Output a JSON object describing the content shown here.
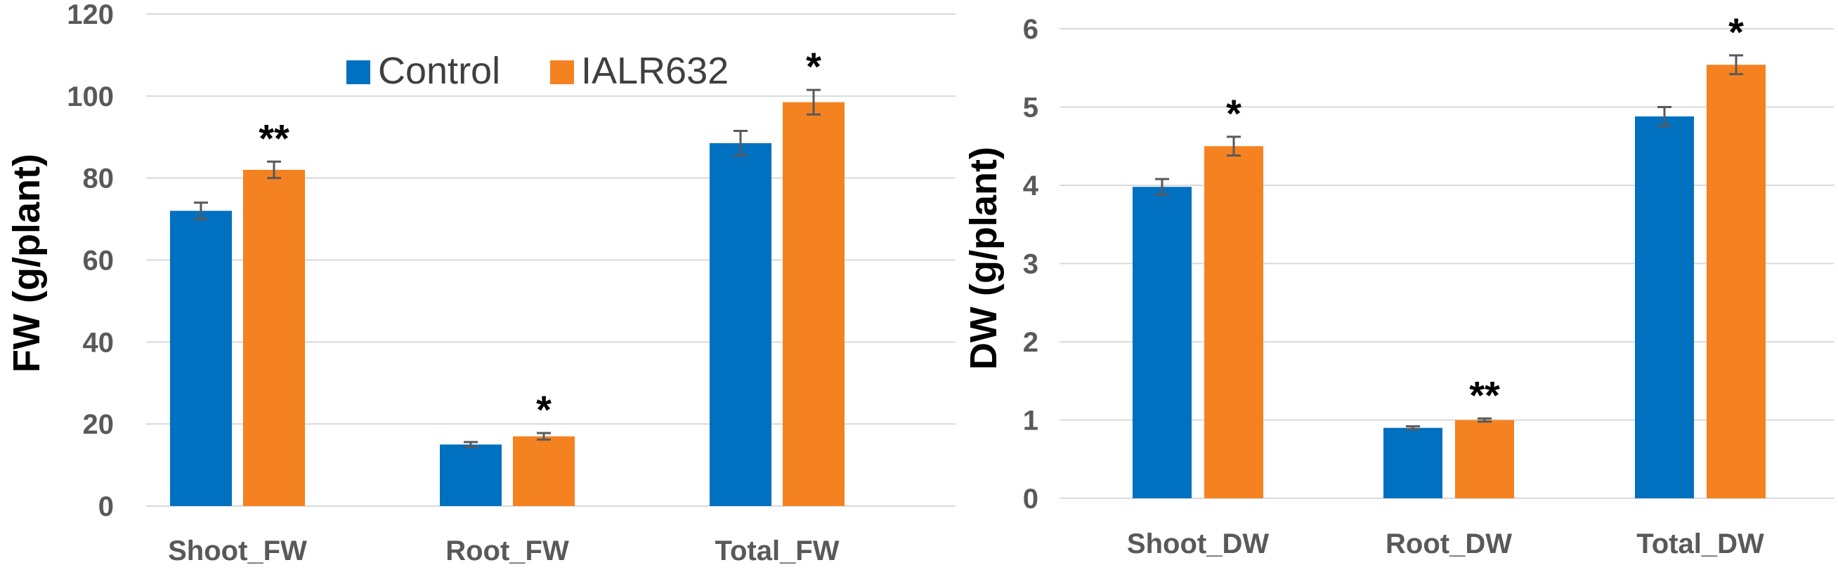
{
  "chart_data": [
    {
      "type": "bar",
      "title": "",
      "xlabel": "",
      "ylabel": "FW (g/plant)",
      "ylim": [
        0,
        120
      ],
      "yticks": [
        0,
        20,
        40,
        60,
        80,
        100,
        120
      ],
      "grid": true,
      "legend_position": "top-center",
      "categories": [
        "Shoot_FW",
        "Root_FW",
        "Total_FW"
      ],
      "series": [
        {
          "name": "Control",
          "color": "#0070C0",
          "values": [
            72,
            15,
            88.5
          ],
          "errors": [
            2,
            0.6,
            3
          ]
        },
        {
          "name": "IALR632",
          "color": "#F58220",
          "values": [
            82,
            17,
            98.5
          ],
          "errors": [
            2,
            0.8,
            3
          ]
        }
      ],
      "significance": [
        "**",
        "*",
        "*"
      ]
    },
    {
      "type": "bar",
      "title": "",
      "xlabel": "",
      "ylabel": "DW (g/plant)",
      "ylim": [
        0,
        6
      ],
      "yticks": [
        0,
        1,
        2,
        3,
        4,
        5,
        6
      ],
      "grid": true,
      "legend_position": "none",
      "categories": [
        "Shoot_DW",
        "Root_DW",
        "Total_DW"
      ],
      "series": [
        {
          "name": "Control",
          "color": "#0070C0",
          "values": [
            3.98,
            0.9,
            4.88
          ],
          "errors": [
            0.1,
            0.02,
            0.12
          ]
        },
        {
          "name": "IALR632",
          "color": "#F58220",
          "values": [
            4.5,
            1.0,
            5.54
          ],
          "errors": [
            0.12,
            0.02,
            0.12
          ]
        }
      ],
      "significance": [
        "*",
        "**",
        "*"
      ]
    }
  ],
  "colors": {
    "grid": "#D9D9D9",
    "axis": "#D9D9D9",
    "tick_text": "#595959",
    "error_bar": "#595959"
  }
}
